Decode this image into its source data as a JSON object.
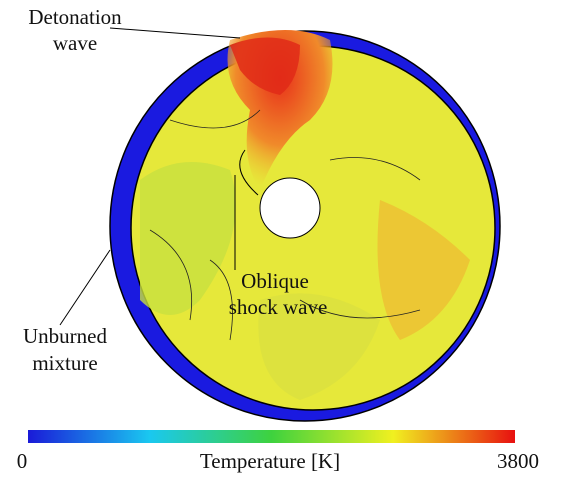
{
  "annotations": {
    "detonation": [
      "Detonation",
      "wave"
    ],
    "oblique": [
      "Oblique",
      "shock wave"
    ],
    "unburned": [
      "Unburned",
      "mixture"
    ]
  },
  "colorbar": {
    "title": "Temperature [K]",
    "min_label": "0",
    "max_label": "3800"
  }
}
